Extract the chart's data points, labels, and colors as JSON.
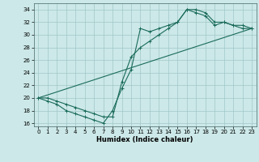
{
  "xlabel": "Humidex (Indice chaleur)",
  "bg_color": "#cce8e8",
  "line_color": "#1a6b5a",
  "grid_color": "#a0c8c8",
  "xlim": [
    -0.5,
    23.5
  ],
  "ylim": [
    15.5,
    35.0
  ],
  "xticks": [
    0,
    1,
    2,
    3,
    4,
    5,
    6,
    7,
    8,
    9,
    10,
    11,
    12,
    13,
    14,
    15,
    16,
    17,
    18,
    19,
    20,
    21,
    22,
    23
  ],
  "yticks": [
    16,
    18,
    20,
    22,
    24,
    26,
    28,
    30,
    32,
    34
  ],
  "line1_x": [
    0,
    1,
    2,
    3,
    4,
    5,
    6,
    7,
    8,
    9,
    10,
    11,
    12,
    13,
    14,
    15,
    16,
    17,
    18,
    19,
    20,
    21,
    22,
    23
  ],
  "line1_y": [
    20,
    19.5,
    19.0,
    18.0,
    17.5,
    17.0,
    16.5,
    16.0,
    18.0,
    21.5,
    24.5,
    31.0,
    30.5,
    31.0,
    31.5,
    32.0,
    34.0,
    33.5,
    33.0,
    31.5,
    32.0,
    31.5,
    31.5,
    31.0
  ],
  "line2_x": [
    0,
    1,
    2,
    3,
    4,
    5,
    6,
    7,
    8,
    9,
    10,
    11,
    12,
    13,
    14,
    15,
    16,
    17,
    18,
    19,
    20,
    21,
    22,
    23
  ],
  "line2_y": [
    20,
    20.0,
    19.5,
    19.0,
    18.5,
    18.0,
    17.5,
    17.0,
    17.0,
    22.5,
    26.5,
    28.0,
    29.0,
    30.0,
    31.0,
    32.0,
    34.0,
    34.0,
    33.5,
    32.0,
    32.0,
    31.5,
    31.0,
    31.0
  ],
  "line3_x": [
    0,
    23
  ],
  "line3_y": [
    20,
    31
  ]
}
